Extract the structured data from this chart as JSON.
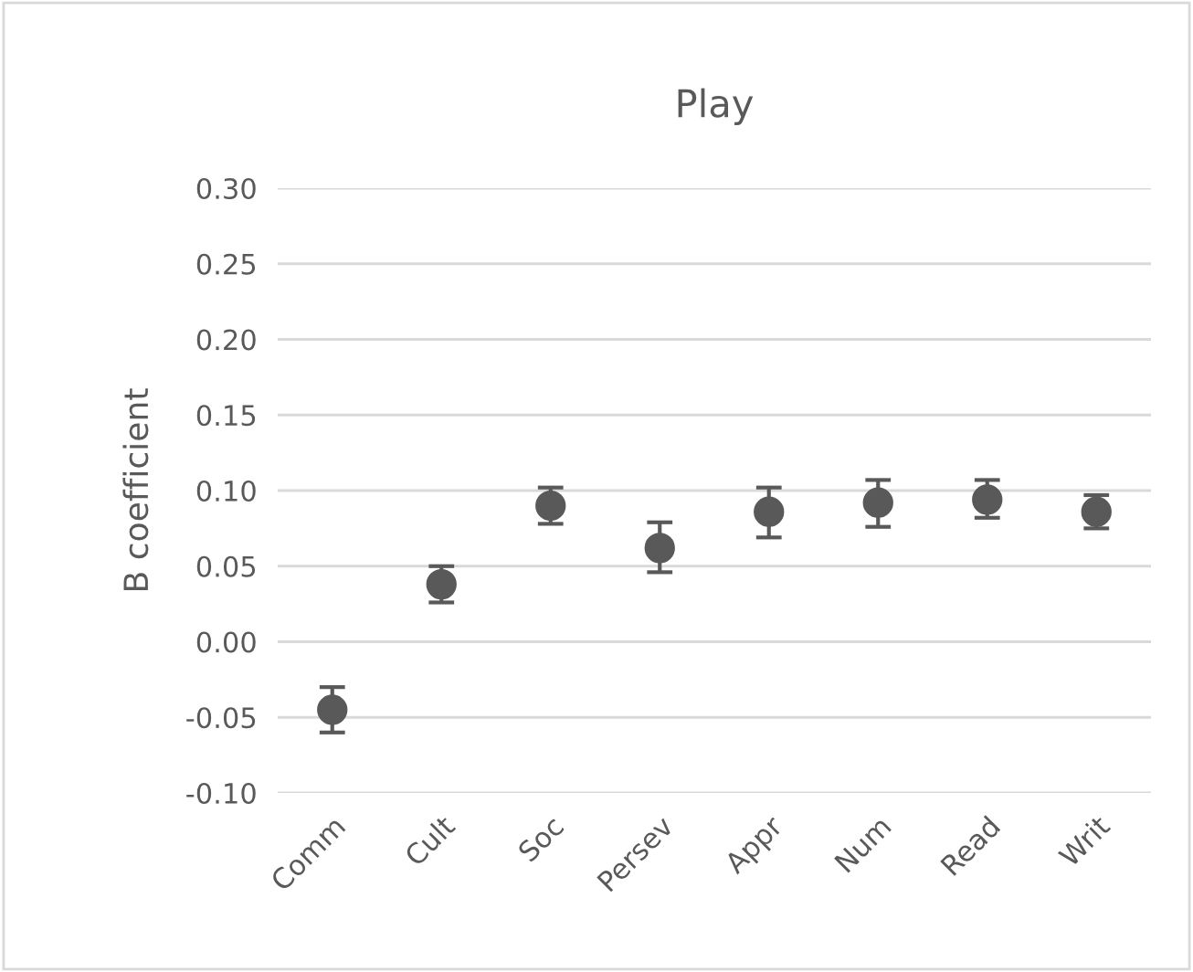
{
  "chart_data": {
    "type": "scatter",
    "title": "Play",
    "ylabel": "B coefficient",
    "categories": [
      "Comm",
      "Cult",
      "Soc",
      "Persev",
      "Appr",
      "Num",
      "Read",
      "Writ"
    ],
    "series": [
      {
        "color": "#595959",
        "values": [
          -0.045,
          0.038,
          0.09,
          0.062,
          0.086,
          0.092,
          0.094,
          0.086
        ],
        "errors": [
          [
            -0.06,
            -0.03
          ],
          [
            0.026,
            0.05
          ],
          [
            0.078,
            0.102
          ],
          [
            0.046,
            0.079
          ],
          [
            0.069,
            0.102
          ],
          [
            0.076,
            0.107
          ],
          [
            0.082,
            0.107
          ],
          [
            0.075,
            0.097
          ]
        ]
      }
    ],
    "ylim": [
      -0.1,
      0.3
    ],
    "yticks": [
      {
        "value": -0.1,
        "label": "-0.10"
      },
      {
        "value": -0.05,
        "label": "-0.05"
      },
      {
        "value": 0.0,
        "label": "0.00"
      },
      {
        "value": 0.05,
        "label": "0.05"
      },
      {
        "value": 0.1,
        "label": "0.10"
      },
      {
        "value": 0.15,
        "label": "0.15"
      },
      {
        "value": 0.2,
        "label": "0.20"
      },
      {
        "value": 0.25,
        "label": "0.25"
      },
      {
        "value": 0.3,
        "label": "0.30"
      }
    ],
    "grid": "y",
    "marker": "circle"
  }
}
